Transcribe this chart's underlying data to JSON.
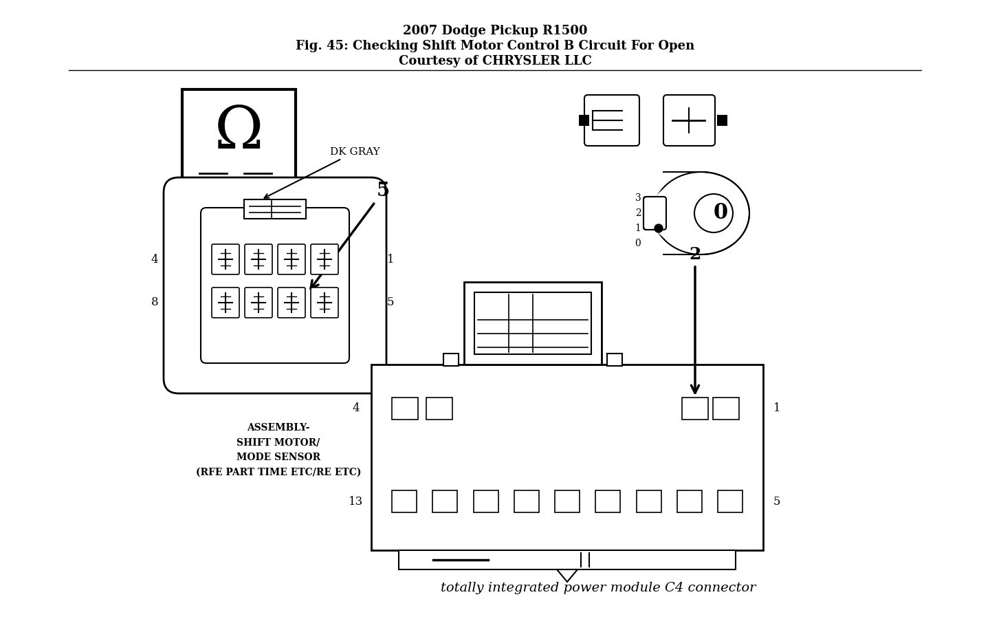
{
  "title_line1": "2007 Dodge Pickup R1500",
  "title_line2": "Fig. 45: Checking Shift Motor Control B Circuit For Open",
  "title_line3": "Courtesy of CHRYSLER LLC",
  "bg_color": "#ffffff",
  "text_color": "#000000",
  "footer_text": "totally integrated power module C4 connector"
}
